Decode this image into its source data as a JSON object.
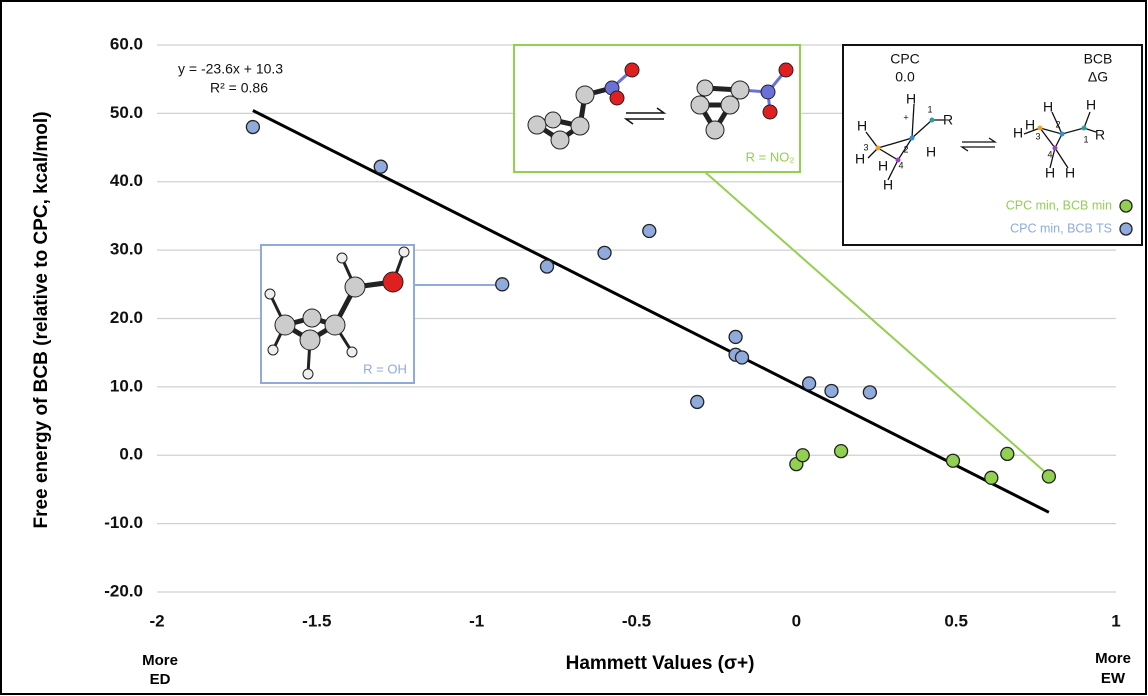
{
  "chart_data": {
    "type": "scatter",
    "y_label": "Free energy of BCB (relative to CPC, kcal/mol)",
    "x_label": "Hammett Values (σ+)",
    "left_note": [
      "More",
      "ED"
    ],
    "right_note": [
      "More",
      "EW"
    ],
    "xlim": [
      -2,
      1
    ],
    "xticks": [
      -2,
      -1.5,
      -1,
      -0.5,
      0,
      0.5,
      1
    ],
    "ylim": [
      -20,
      60
    ],
    "yticks": [
      {
        "value": -20,
        "label": "-20.0"
      },
      {
        "value": -10,
        "label": "-10.0"
      },
      {
        "value": 0,
        "label": "0.0"
      },
      {
        "value": 10,
        "label": "10.0"
      },
      {
        "value": 20,
        "label": "20.0"
      },
      {
        "value": 30,
        "label": "30.0"
      },
      {
        "value": 40,
        "label": "40.0"
      },
      {
        "value": 50,
        "label": "50.0"
      },
      {
        "value": 60,
        "label": "60.0"
      }
    ],
    "grid": true,
    "legend": "upper right",
    "series": [
      {
        "name": "CPC min, BCB min",
        "color": "#92d050",
        "x": [
          0.0,
          0.02,
          0.14,
          0.49,
          0.61,
          0.66,
          0.79
        ],
        "values": [
          -1.3,
          0.0,
          0.6,
          -0.8,
          -3.3,
          0.2,
          -3.1
        ]
      },
      {
        "name": "CPC min, BCB TS",
        "color": "#8faadc",
        "x": [
          -1.7,
          -1.3,
          -0.92,
          -0.78,
          -0.6,
          -0.46,
          -0.31,
          -0.19,
          -0.19,
          -0.17,
          0.04,
          0.11,
          0.23
        ],
        "values": [
          48.0,
          42.2,
          25.0,
          27.6,
          29.6,
          32.8,
          7.8,
          17.3,
          14.7,
          14.3,
          10.5,
          9.4,
          9.2
        ]
      }
    ],
    "trendline": {
      "slope": -23.6,
      "intercept": 10.3,
      "equation": "y = -23.6x + 10.3",
      "r2": "R² = 0.86"
    },
    "inset": {
      "left_title": "CPC",
      "left_value": "0.0",
      "right_title": "BCB",
      "right_value": "ΔG",
      "left_atoms": [
        "H",
        "1",
        "R",
        "+",
        "H",
        "3",
        "H",
        "2",
        "H",
        "H",
        "4",
        "H"
      ],
      "right_atoms": [
        "H",
        "H",
        "H",
        "3",
        "2",
        "H",
        "1",
        "R",
        "4",
        "H",
        "H"
      ]
    },
    "callouts": [
      {
        "label": "R = OH"
      },
      {
        "label": "R = NO₂"
      }
    ]
  }
}
